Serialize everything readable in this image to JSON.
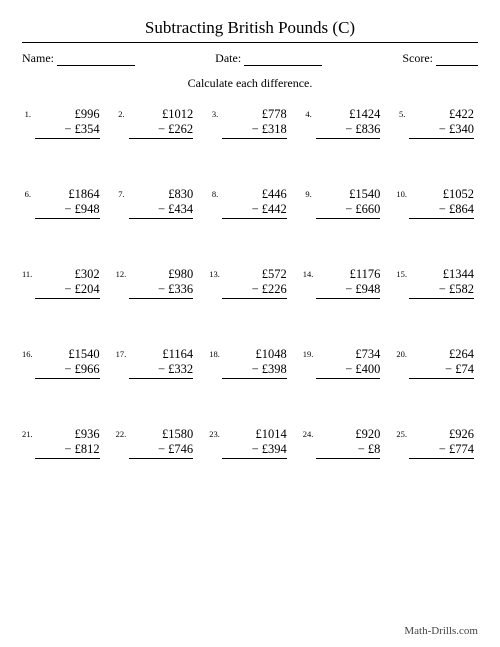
{
  "title": "Subtracting British Pounds (C)",
  "header": {
    "name_label": "Name:",
    "date_label": "Date:",
    "score_label": "Score:",
    "name_line_w": 78,
    "date_line_w": 78,
    "score_line_w": 42
  },
  "instruction": "Calculate each difference.",
  "currency": "£",
  "minus": "−",
  "problems": [
    {
      "n": "1.",
      "a": 996,
      "b": 354
    },
    {
      "n": "2.",
      "a": 1012,
      "b": 262
    },
    {
      "n": "3.",
      "a": 778,
      "b": 318
    },
    {
      "n": "4.",
      "a": 1424,
      "b": 836
    },
    {
      "n": "5.",
      "a": 422,
      "b": 340
    },
    {
      "n": "6.",
      "a": 1864,
      "b": 948
    },
    {
      "n": "7.",
      "a": 830,
      "b": 434
    },
    {
      "n": "8.",
      "a": 446,
      "b": 442
    },
    {
      "n": "9.",
      "a": 1540,
      "b": 660
    },
    {
      "n": "10.",
      "a": 1052,
      "b": 864
    },
    {
      "n": "11.",
      "a": 302,
      "b": 204
    },
    {
      "n": "12.",
      "a": 980,
      "b": 336
    },
    {
      "n": "13.",
      "a": 572,
      "b": 226
    },
    {
      "n": "14.",
      "a": 1176,
      "b": 948
    },
    {
      "n": "15.",
      "a": 1344,
      "b": 582
    },
    {
      "n": "16.",
      "a": 1540,
      "b": 966
    },
    {
      "n": "17.",
      "a": 1164,
      "b": 332
    },
    {
      "n": "18.",
      "a": 1048,
      "b": 398
    },
    {
      "n": "19.",
      "a": 734,
      "b": 400
    },
    {
      "n": "20.",
      "a": 264,
      "b": 74
    },
    {
      "n": "21.",
      "a": 936,
      "b": 812
    },
    {
      "n": "22.",
      "a": 1580,
      "b": 746
    },
    {
      "n": "23.",
      "a": 1014,
      "b": 394
    },
    {
      "n": "24.",
      "a": 920,
      "b": 8
    },
    {
      "n": "25.",
      "a": 926,
      "b": 774
    }
  ],
  "footer": "Math-Drills.com"
}
